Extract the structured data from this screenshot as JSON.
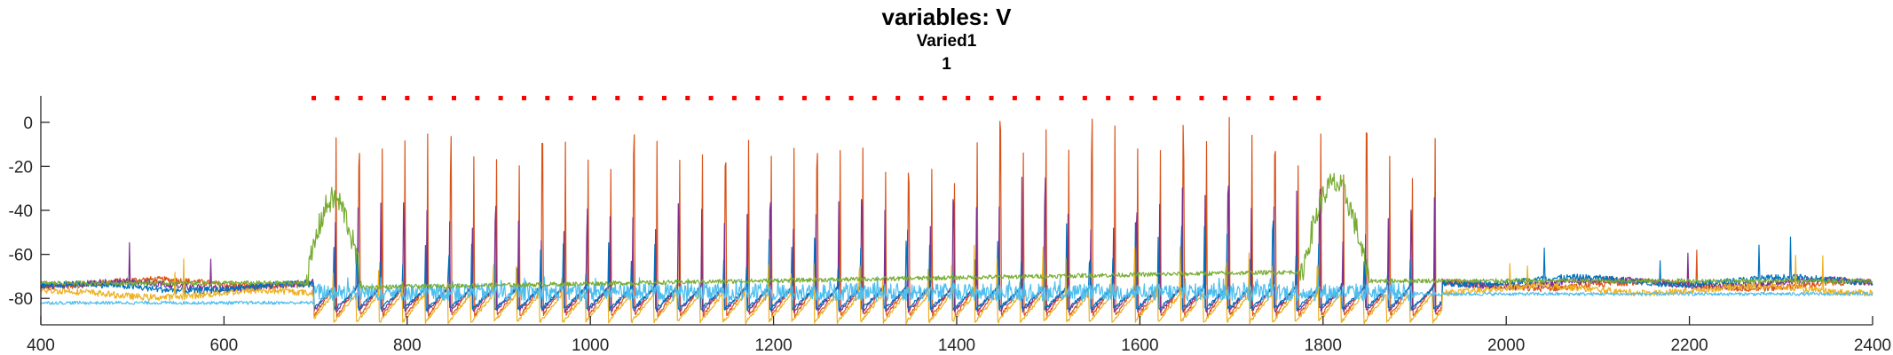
{
  "chart_data": {
    "type": "line",
    "title": "variables: V",
    "subtitle": "Varied1",
    "subtitle2": "1",
    "xlabel": "",
    "ylabel": "",
    "xlim": [
      400,
      2400
    ],
    "ylim": [
      -92,
      12
    ],
    "xticks": [
      400,
      600,
      800,
      1000,
      1200,
      1400,
      1600,
      1800,
      2000,
      2200,
      2400
    ],
    "yticks": [
      -80,
      -60,
      -40,
      -20,
      0
    ],
    "grid": false,
    "legend": "none",
    "stimulus_marker": {
      "x_start": 698,
      "x_end": 1795,
      "y": 11,
      "count": 44,
      "color": "#ff0000"
    },
    "series": [
      {
        "color": "#d95319",
        "baseline_pre": -73,
        "trough": -88,
        "baseline_post": -74,
        "spike_start": 698,
        "spike_end": 1930,
        "spike_period": 25,
        "spike_peak_max": 8,
        "notes": "orange-red trace"
      },
      {
        "color": "#7e2f8e",
        "baseline_pre": -74,
        "trough": -86,
        "baseline_post": -73,
        "spike_start": 698,
        "spike_end": 1930,
        "spike_period": 25,
        "spike_peak_max": -20
      },
      {
        "color": "#0072bd",
        "baseline_pre": -75,
        "trough": -85,
        "baseline_post": -72,
        "spike_start": 698,
        "spike_end": 1930,
        "spike_period": 25,
        "spike_peak_max": -40
      },
      {
        "color": "#edb120",
        "baseline_pre": -78,
        "trough": -91,
        "baseline_post": -76,
        "spike_start": 698,
        "spike_end": 1930,
        "spike_period": 25,
        "spike_peak_max": -50
      },
      {
        "color": "#4dbeee",
        "baseline_pre": -82,
        "trough": -84,
        "baseline_post": -78,
        "burst_start": 698,
        "burst_end": 1900,
        "burst_level": -70
      },
      {
        "color": "#77ac30",
        "baseline_pre": -73,
        "baseline_post": -72,
        "burst1": [
          690,
          750,
          -35
        ],
        "burst2": [
          1775,
          1850,
          -28
        ],
        "ramp_level": -68
      }
    ]
  }
}
